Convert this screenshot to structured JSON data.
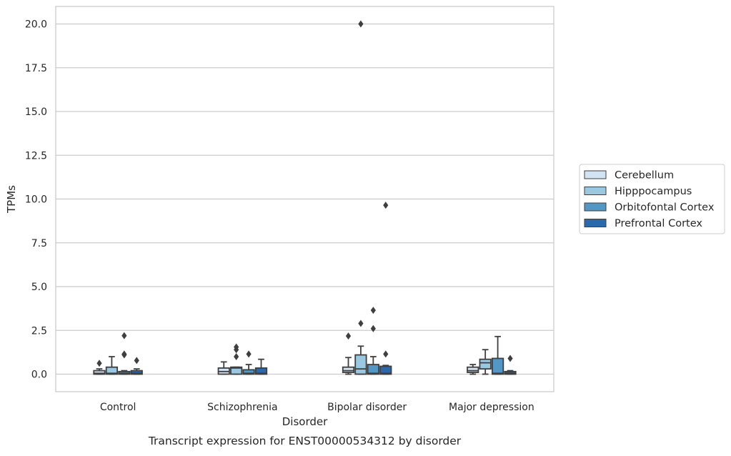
{
  "chart_data": {
    "type": "box",
    "caption": "Transcript expression for ENST00000534312 by disorder",
    "xlabel": "Disorder",
    "ylabel": "TPMs",
    "ylim": [
      -1.0,
      21.0
    ],
    "yticks": [
      0.0,
      2.5,
      5.0,
      7.5,
      10.0,
      12.5,
      15.0,
      17.5,
      20.0
    ],
    "ytick_labels": [
      "0.0",
      "2.5",
      "5.0",
      "7.5",
      "10.0",
      "12.5",
      "15.0",
      "17.5",
      "20.0"
    ],
    "grid": "horizontal",
    "legend_placement": "right",
    "categories": [
      "Control",
      "Schizophrenia",
      "Bipolar disorder",
      "Major depression"
    ],
    "series": [
      {
        "name": "Cerebellum",
        "color": "#d2e3f3",
        "boxes": [
          {
            "whislo": 0.0,
            "q1": 0.0,
            "med": 0.05,
            "q3": 0.2,
            "whishi": 0.3,
            "fliers": [
              0.62
            ]
          },
          {
            "whislo": 0.0,
            "q1": 0.0,
            "med": 0.15,
            "q3": 0.35,
            "whishi": 0.7,
            "fliers": []
          },
          {
            "whislo": 0.0,
            "q1": 0.1,
            "med": 0.2,
            "q3": 0.4,
            "whishi": 0.95,
            "fliers": [
              2.18
            ]
          },
          {
            "whislo": 0.0,
            "q1": 0.1,
            "med": 0.2,
            "q3": 0.4,
            "whishi": 0.55,
            "fliers": []
          }
        ]
      },
      {
        "name": "Hipppocampus",
        "color": "#9ac8e0",
        "boxes": [
          {
            "whislo": 0.0,
            "q1": 0.0,
            "med": 0.05,
            "q3": 0.4,
            "whishi": 1.0,
            "fliers": []
          },
          {
            "whislo": 0.0,
            "q1": 0.0,
            "med": 0.35,
            "q3": 0.4,
            "whishi": 0.4,
            "fliers": [
              1.0,
              1.4,
              1.55
            ]
          },
          {
            "whislo": 0.0,
            "q1": 0.0,
            "med": 0.3,
            "q3": 1.1,
            "whishi": 1.6,
            "fliers": [
              2.9,
              20.0
            ]
          },
          {
            "whislo": 0.0,
            "q1": 0.3,
            "med": 0.65,
            "q3": 0.85,
            "whishi": 1.4,
            "fliers": []
          }
        ]
      },
      {
        "name": "Orbitofontal Cortex",
        "color": "#5297c6",
        "boxes": [
          {
            "whislo": 0.0,
            "q1": 0.0,
            "med": 0.05,
            "q3": 0.15,
            "whishi": 0.2,
            "fliers": [
              1.1,
              1.15,
              2.2
            ]
          },
          {
            "whislo": 0.0,
            "q1": 0.0,
            "med": 0.05,
            "q3": 0.25,
            "whishi": 0.55,
            "fliers": [
              1.15
            ]
          },
          {
            "whislo": 0.0,
            "q1": 0.0,
            "med": 0.05,
            "q3": 0.55,
            "whishi": 1.0,
            "fliers": [
              2.6,
              3.65
            ]
          },
          {
            "whislo": 0.0,
            "q1": 0.0,
            "med": 0.05,
            "q3": 0.9,
            "whishi": 2.15,
            "fliers": []
          }
        ]
      },
      {
        "name": "Prefrontal Cortex",
        "color": "#2a6aac",
        "boxes": [
          {
            "whislo": 0.0,
            "q1": 0.0,
            "med": 0.05,
            "q3": 0.2,
            "whishi": 0.3,
            "fliers": [
              0.78
            ]
          },
          {
            "whislo": 0.0,
            "q1": 0.0,
            "med": 0.05,
            "q3": 0.35,
            "whishi": 0.85,
            "fliers": []
          },
          {
            "whislo": 0.0,
            "q1": 0.0,
            "med": 0.05,
            "q3": 0.45,
            "whishi": 0.5,
            "fliers": [
              1.15,
              9.65
            ]
          },
          {
            "whislo": 0.0,
            "q1": 0.0,
            "med": 0.05,
            "q3": 0.15,
            "whishi": 0.2,
            "fliers": [
              0.9
            ]
          }
        ]
      }
    ]
  }
}
